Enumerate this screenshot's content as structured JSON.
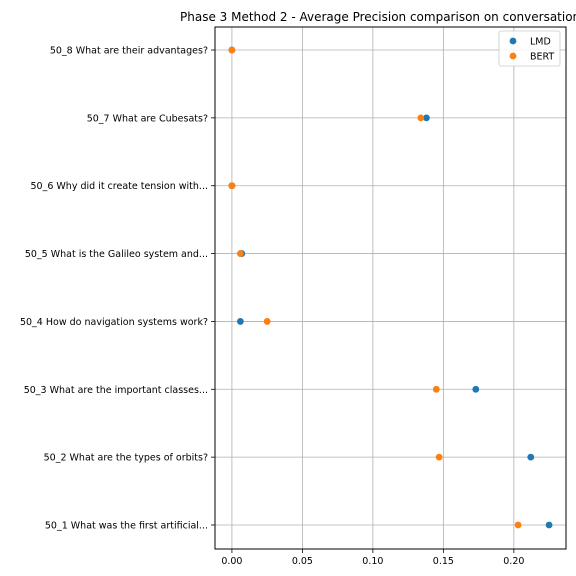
{
  "chart_data": {
    "type": "scatter",
    "title": "Phase 3 Method 2 - Average Precision comparison on conversation",
    "xlabel": "",
    "ylabel": "",
    "xlim": [
      -0.012,
      0.237
    ],
    "xticks": [
      0.0,
      0.05,
      0.1,
      0.15,
      0.2
    ],
    "xtick_labels": [
      "0.00",
      "0.05",
      "0.10",
      "0.15",
      "0.20"
    ],
    "categories": [
      "50_1 What was the first artificial...",
      "50_2 What are the types of orbits?",
      "50_3 What are the important classes...",
      "50_4 How do navigation systems work?",
      "50_5 What is the Galileo system and...",
      "50_6 Why did it create tension with...",
      "50_7 What are Cubesats?",
      "50_8 What are their advantages?"
    ],
    "series": [
      {
        "name": "LMD",
        "color": "#1f77b4",
        "values": [
          0.225,
          0.212,
          0.173,
          0.006,
          0.007,
          0.0,
          0.138,
          0.0
        ]
      },
      {
        "name": "BERT",
        "color": "#ff7f0e",
        "values": [
          0.203,
          0.147,
          0.145,
          0.025,
          0.006,
          0.0,
          0.134,
          0.0
        ]
      }
    ],
    "grid": true,
    "legend_position": "top-right"
  }
}
